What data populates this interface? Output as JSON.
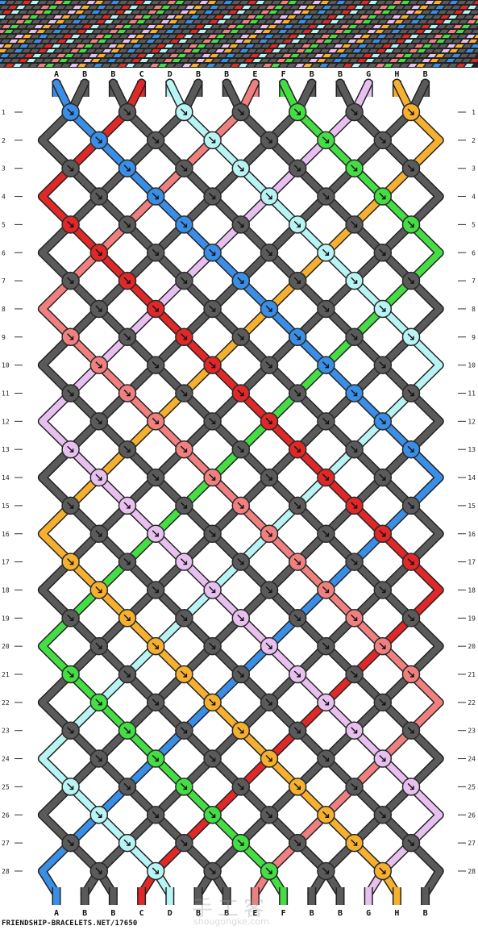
{
  "pattern": {
    "strings_top": [
      "A",
      "B",
      "B",
      "C",
      "D",
      "B",
      "B",
      "E",
      "F",
      "B",
      "B",
      "G",
      "H",
      "B"
    ],
    "strings_bottom": [
      "A",
      "B",
      "B",
      "C",
      "D",
      "B",
      "B",
      "E",
      "F",
      "B",
      "B",
      "G",
      "H",
      "B"
    ],
    "rows": [
      "1",
      "2",
      "3",
      "4",
      "5",
      "6",
      "7",
      "8",
      "9",
      "10",
      "11",
      "12",
      "13",
      "14",
      "15",
      "16",
      "17",
      "18",
      "19",
      "20",
      "21",
      "22",
      "23",
      "24",
      "25",
      "26",
      "27",
      "28"
    ],
    "colors": {
      "A": "#3a8ee6",
      "B": "#5a5a5a",
      "C": "#e02828",
      "D": "#b8f4f4",
      "E": "#f08080",
      "F": "#44dd44",
      "G": "#e8c0f0",
      "H": "#f5b030"
    },
    "knot_border": "#2a2a2a",
    "footer": "FRIENDSHIP-BRACELETS.NET/17650"
  },
  "watermark": {
    "cn": "手工客",
    "en": "shougongke.com"
  }
}
